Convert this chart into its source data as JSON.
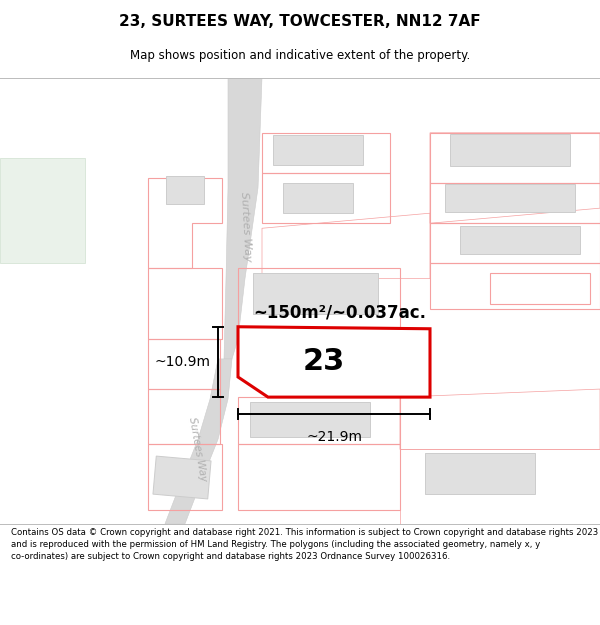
{
  "title": "23, SURTEES WAY, TOWCESTER, NN12 7AF",
  "subtitle": "Map shows position and indicative extent of the property.",
  "footer": "Contains OS data © Crown copyright and database right 2021. This information is subject to Crown copyright and database rights 2023 and is reproduced with the permission of HM Land Registry. The polygons (including the associated geometry, namely x, y co-ordinates) are subject to Crown copyright and database rights 2023 Ordnance Survey 100026316.",
  "bg_color": "#ffffff",
  "road_fill": "#d8d8d8",
  "road_edge": "#cccccc",
  "plot_color": "#dd0000",
  "bldg_fill": "#e0e0e0",
  "bldg_edge": "#cccccc",
  "pink": "#f5a0a0",
  "green_fill": "#e8f0e8",
  "area_label": "~150m²/~0.037ac.",
  "width_label": "~21.9m",
  "height_label": "~10.9m",
  "number_label": "23",
  "road_label_upper": "Surtees Way",
  "road_label_lower": "Surtees Way"
}
